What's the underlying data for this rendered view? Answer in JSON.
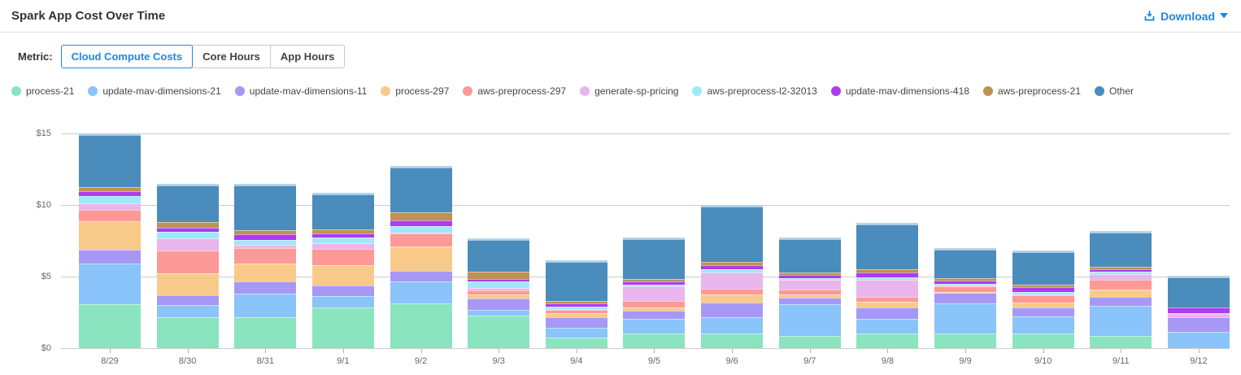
{
  "header": {
    "title": "Spark App Cost Over Time",
    "download_label": "Download"
  },
  "metric": {
    "label": "Metric:",
    "options": [
      {
        "label": "Cloud Compute Costs",
        "active": true
      },
      {
        "label": "Core Hours",
        "active": false
      },
      {
        "label": "App Hours",
        "active": false
      }
    ]
  },
  "colors": {
    "accent_blue": "#1e88e5",
    "gridline": "#cccccc",
    "axis_text": "#666666",
    "bar_top_cap": "#b5d4e9"
  },
  "chart_data": {
    "type": "bar",
    "stacked": true,
    "title": "Spark App Cost Over Time",
    "xlabel": "",
    "ylabel": "Cloud Compute Costs ($)",
    "ylim": [
      0,
      15.9
    ],
    "grid": true,
    "legend_position": "top",
    "y_ticks": [
      {
        "label": "$0",
        "value": 0
      },
      {
        "label": "$5",
        "value": 5
      },
      {
        "label": "$10",
        "value": 10
      },
      {
        "label": "$15",
        "value": 15
      }
    ],
    "categories": [
      "8/29",
      "8/30",
      "8/31",
      "9/1",
      "9/2",
      "9/3",
      "9/4",
      "9/5",
      "9/6",
      "9/7",
      "9/8",
      "9/9",
      "9/10",
      "9/11",
      "9/12"
    ],
    "series": [
      {
        "name": "process-21",
        "color": "#8ae4c0",
        "values": [
          3.05,
          2.15,
          2.15,
          2.85,
          3.1,
          2.25,
          0.75,
          1.0,
          1.0,
          0.85,
          1.0,
          1.0,
          1.0,
          0.85,
          0
        ]
      },
      {
        "name": "update-mav-dimensions-21",
        "color": "#8ac4fa",
        "values": [
          2.85,
          0.85,
          1.65,
          0.8,
          1.55,
          0.45,
          0.65,
          1.05,
          1.15,
          2.2,
          1.05,
          2.1,
          1.2,
          2.1,
          1.15
        ]
      },
      {
        "name": "update-mav-dimensions-11",
        "color": "#a898f5",
        "values": [
          1.0,
          0.7,
          0.85,
          0.7,
          0.75,
          0.75,
          0.75,
          0.55,
          1.05,
          0.45,
          0.8,
          0.75,
          0.65,
          0.65,
          1.0
        ]
      },
      {
        "name": "process-297",
        "color": "#f8ca8a",
        "values": [
          1.95,
          1.55,
          1.25,
          1.45,
          1.7,
          0.3,
          0.3,
          0.25,
          0.55,
          0.25,
          0.4,
          0.1,
          0.35,
          0.5,
          0
        ]
      },
      {
        "name": "aws-preprocess-297",
        "color": "#fd9996",
        "values": [
          0.8,
          1.55,
          1.1,
          1.15,
          0.9,
          0.3,
          0.25,
          0.45,
          0.4,
          0.35,
          0.35,
          0.35,
          0.5,
          0.65,
          0
        ]
      },
      {
        "name": "generate-sp-pricing",
        "color": "#e8b6ec",
        "values": [
          0.45,
          0.9,
          0.2,
          0.4,
          0.05,
          0.15,
          0.05,
          1.0,
          1.15,
          0.65,
          1.2,
          0.05,
          0.05,
          0.4,
          0.3
        ]
      },
      {
        "name": "aws-preprocess-l2-32013",
        "color": "#9ee8fa",
        "values": [
          0.55,
          0.45,
          0.35,
          0.4,
          0.45,
          0.45,
          0.15,
          0.15,
          0.2,
          0.15,
          0.15,
          0.15,
          0.2,
          0.2,
          0
        ]
      },
      {
        "name": "update-mav-dimensions-418",
        "color": "#ac3cf0",
        "values": [
          0.3,
          0.25,
          0.4,
          0.25,
          0.45,
          0.2,
          0.25,
          0.2,
          0.3,
          0.2,
          0.35,
          0.2,
          0.3,
          0.15,
          0.4
        ]
      },
      {
        "name": "aws-preprocess-21",
        "color": "#be9250",
        "values": [
          0.3,
          0.4,
          0.3,
          0.3,
          0.55,
          0.5,
          0.15,
          0.2,
          0.2,
          0.2,
          0.2,
          0.2,
          0.2,
          0.2,
          0
        ]
      },
      {
        "name": "Other",
        "color": "#4a8cbc",
        "values": [
          3.75,
          2.7,
          3.25,
          2.55,
          3.25,
          2.35,
          2.85,
          2.9,
          4.0,
          2.45,
          3.25,
          2.1,
          2.4,
          2.5,
          2.2
        ]
      }
    ]
  }
}
